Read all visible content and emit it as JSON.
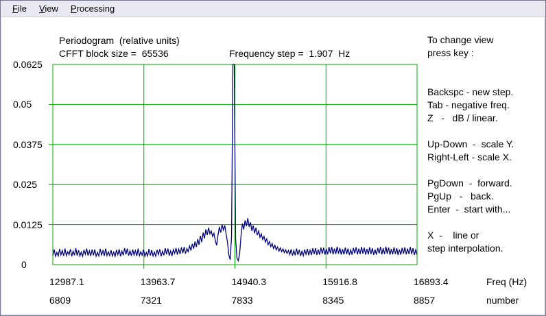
{
  "menubar": {
    "items": [
      {
        "label": "File"
      },
      {
        "label": "View"
      },
      {
        "label": "Processing"
      }
    ]
  },
  "header": {
    "title": "Periodogram  (relative units)",
    "block_size_text": "CFFT block size =  65536",
    "frequency_step_text": "Frequency step =  1.907  Hz"
  },
  "right_panel": {
    "lines": [
      "To change view",
      "press key :",
      "",
      "",
      "Backspc - new step.",
      "Tab - negative freq.",
      "Z   -   dB / linear.",
      "",
      "Up-Down  -  scale Y.",
      "Right-Left - scale X.",
      "",
      "PgDown  -  forward.",
      "PgUp   -   back.",
      "Enter  -  start with...",
      "",
      "X  -    line or",
      "step interpolation."
    ]
  },
  "chart_data": {
    "type": "line",
    "title": "Periodogram (relative units)",
    "legend": null,
    "grid": true,
    "colors": {
      "grid": "#00a800",
      "trace": "#000080",
      "text": "#000000",
      "background": "#ffffff"
    },
    "x_axis": {
      "unit_row1": "Freq (Hz)",
      "unit_row2": "number",
      "freq_ticks": [
        "12987.1",
        "13963.7",
        "14940.3",
        "15916.8",
        "16893.4"
      ],
      "number_ticks": [
        "6809",
        "7321",
        "7833",
        "8345",
        "8857"
      ],
      "xmin": 12987.1,
      "xmax": 16893.4
    },
    "y_axis": {
      "ticks": [
        0.0625,
        0.05,
        0.0375,
        0.025,
        0.0125,
        0
      ],
      "tick_labels": [
        "0.0625",
        "0.05",
        "0.0375",
        "0.025",
        "0.0125",
        "0"
      ],
      "ymin": 0,
      "ymax": 0.0625
    },
    "peak": {
      "freq_hz": 14925,
      "value": 0.0625,
      "clipped_at_top": true
    },
    "values": [
      0.0029,
      0.0047,
      0.0026,
      0.0038,
      0.0027,
      0.0049,
      0.003,
      0.0044,
      0.0027,
      0.005,
      0.0028,
      0.004,
      0.0031,
      0.0048,
      0.0026,
      0.0042,
      0.0029,
      0.0051,
      0.0028,
      0.0045,
      0.0027,
      0.0039,
      0.0026,
      0.0046,
      0.0032,
      0.005,
      0.0028,
      0.0043,
      0.0027,
      0.0047,
      0.0029,
      0.0047,
      0.0026,
      0.0038,
      0.0027,
      0.0049,
      0.003,
      0.0044,
      0.0027,
      0.005,
      0.0028,
      0.004,
      0.0028,
      0.0045,
      0.0027,
      0.0039,
      0.0026,
      0.0046,
      0.0031,
      0.0048,
      0.0026,
      0.0042,
      0.0029,
      0.0051,
      0.0032,
      0.005,
      0.0028,
      0.0043,
      0.0027,
      0.0047,
      0.003,
      0.0044,
      0.0027,
      0.005,
      0.0028,
      0.004,
      0.0029,
      0.0047,
      0.0026,
      0.0038,
      0.0027,
      0.0049,
      0.0028,
      0.0045,
      0.0027,
      0.0039,
      0.0026,
      0.0046,
      0.0031,
      0.0048,
      0.0026,
      0.0042,
      0.0029,
      0.0051,
      0.0032,
      0.005,
      0.0028,
      0.0043,
      0.0027,
      0.0047,
      0.0035,
      0.0052,
      0.0031,
      0.0048,
      0.0033,
      0.0054,
      0.0036,
      0.0055,
      0.0034,
      0.005,
      0.004,
      0.0058,
      0.0044,
      0.0065,
      0.005,
      0.0072,
      0.0055,
      0.008,
      0.0062,
      0.009,
      0.007,
      0.01,
      0.0082,
      0.011,
      0.0092,
      0.0115,
      0.0096,
      0.0105,
      0.0088,
      0.0098,
      0.0075,
      0.006,
      0.0092,
      0.0118,
      0.01,
      0.0125,
      0.0108,
      0.0122,
      0.0095,
      0.007,
      0.003,
      0.0015,
      0.0088,
      0.0625,
      0.0625,
      0.008,
      0.002,
      0.0012,
      0.0035,
      0.009,
      0.0128,
      0.011,
      0.0138,
      0.012,
      0.0145,
      0.0118,
      0.0132,
      0.0105,
      0.0122,
      0.0098,
      0.0115,
      0.0092,
      0.0105,
      0.0085,
      0.0096,
      0.0078,
      0.0088,
      0.007,
      0.008,
      0.0062,
      0.0072,
      0.0056,
      0.0066,
      0.005,
      0.006,
      0.0046,
      0.0055,
      0.0042,
      0.0052,
      0.004,
      0.0049,
      0.0037,
      0.0046,
      0.0035,
      0.0044,
      0.0031,
      0.0048,
      0.0028,
      0.0044,
      0.0029,
      0.005,
      0.003,
      0.0046,
      0.0027,
      0.0042,
      0.0028,
      0.0047,
      0.0032,
      0.0049,
      0.0029,
      0.0045,
      0.003,
      0.0051,
      0.0033,
      0.0051,
      0.003,
      0.0047,
      0.0031,
      0.0053,
      0.0034,
      0.0053,
      0.0031,
      0.0049,
      0.0032,
      0.0055,
      0.0035,
      0.0055,
      0.0032,
      0.005,
      0.0033,
      0.0056,
      0.0034,
      0.0052,
      0.0031,
      0.0048,
      0.0032,
      0.0053,
      0.0033,
      0.005,
      0.003,
      0.0046,
      0.0031,
      0.0052,
      0.0035,
      0.0054,
      0.0032,
      0.005,
      0.0033,
      0.0055,
      0.0034,
      0.0053,
      0.0031,
      0.0049,
      0.0032,
      0.0054,
      0.0033,
      0.0051,
      0.003,
      0.0047,
      0.0031,
      0.0052,
      0.0035,
      0.0055,
      0.0032,
      0.0051,
      0.0033,
      0.0056,
      0.0034,
      0.0053,
      0.0031,
      0.0049,
      0.0032,
      0.0054,
      0.0033,
      0.0051,
      0.003,
      0.0047,
      0.0031,
      0.0052,
      0.0034,
      0.0054,
      0.0032,
      0.005,
      0.0033,
      0.0055,
      0.0033,
      0.0051,
      0.003,
      0.0046,
      0.0031
    ]
  }
}
